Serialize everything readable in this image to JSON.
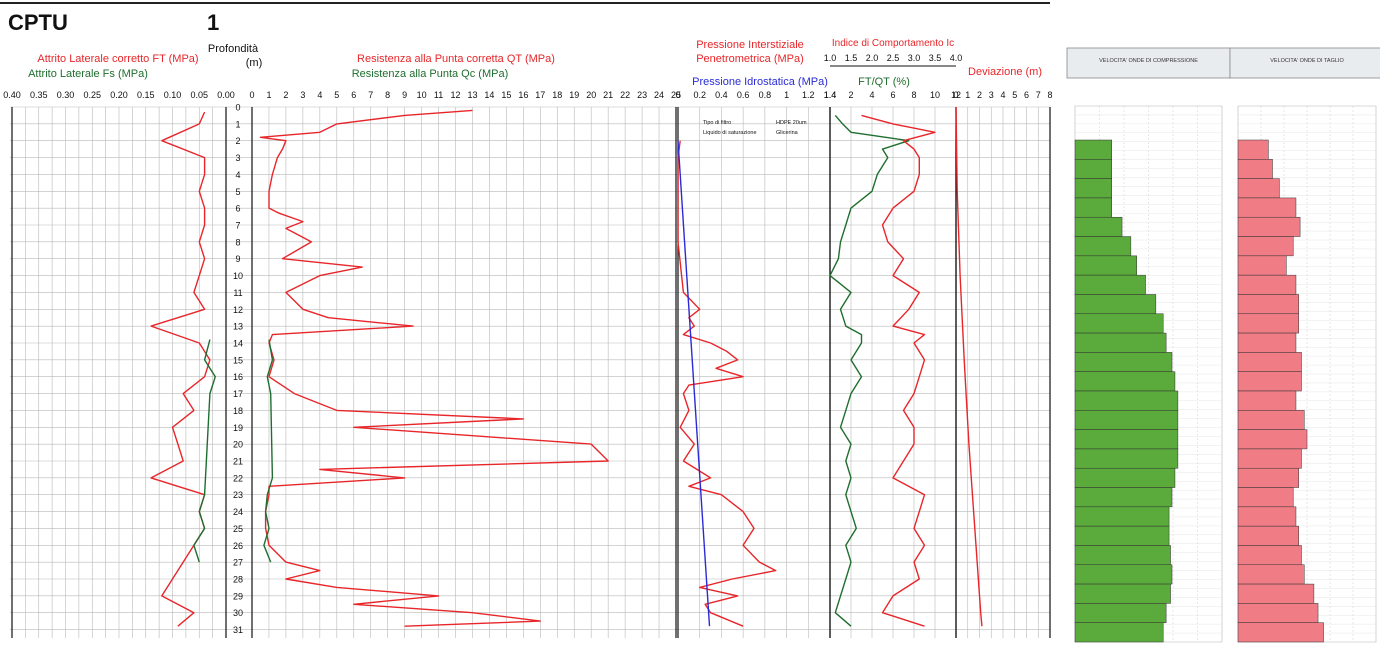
{
  "header": {
    "title": "CPTU",
    "number": "1"
  },
  "colors": {
    "red": "#e8262a",
    "green": "#1f6e2e",
    "blue": "#2b2bd6",
    "vp_fill": "#5aaa3c",
    "vs_fill": "#f07c86",
    "grid": "#b9b9b9"
  },
  "chart_data": [
    {
      "type": "line",
      "panel": "friction",
      "title_red": "Attrito Laterale corretto FT (MPa)",
      "title_green": "Attrito Laterale Fs (MPa)",
      "x_ticks": [
        "0.40",
        "0.35",
        "0.30",
        "0.25",
        "0.20",
        "0.15",
        "0.10",
        "0.05",
        "0.00"
      ],
      "xlim": [
        0.4,
        0.0
      ],
      "series": [
        {
          "name": "Attrito Laterale corretto FT (MPa)",
          "color": "red",
          "depth": [
            0.3,
            1,
            2,
            3,
            4,
            5,
            6,
            7,
            8,
            9,
            10,
            11,
            12,
            13,
            14,
            15,
            16,
            17,
            18,
            19,
            20,
            21,
            22,
            23,
            24,
            25,
            26,
            27,
            28,
            29,
            30,
            30.8
          ],
          "values": [
            0.04,
            0.05,
            0.12,
            0.04,
            0.04,
            0.05,
            0.04,
            0.04,
            0.05,
            0.04,
            0.05,
            0.06,
            0.04,
            0.14,
            0.05,
            0.03,
            0.04,
            0.08,
            0.06,
            0.1,
            0.09,
            0.08,
            0.14,
            0.04,
            0.05,
            0.04,
            0.06,
            0.08,
            0.1,
            0.12,
            0.06,
            0.09
          ]
        },
        {
          "name": "Attrito Laterale Fs (MPa)",
          "color": "green",
          "depth": [
            13.8,
            15,
            16,
            17,
            23,
            24,
            25,
            26,
            27
          ],
          "values": [
            0.03,
            0.04,
            0.02,
            0.03,
            0.04,
            0.05,
            0.04,
            0.06,
            0.05
          ]
        }
      ]
    },
    {
      "type": "axis",
      "panel": "depth",
      "label": "Profondità",
      "unit": "(m)",
      "ticks": [
        "0",
        "1",
        "2",
        "3",
        "4",
        "5",
        "6",
        "7",
        "8",
        "9",
        "10",
        "11",
        "12",
        "13",
        "14",
        "15",
        "16",
        "17",
        "18",
        "19",
        "20",
        "21",
        "22",
        "23",
        "24",
        "25",
        "26",
        "27",
        "28",
        "29",
        "30",
        "31"
      ],
      "ylim": [
        0,
        31.5
      ]
    },
    {
      "type": "line",
      "panel": "tip",
      "title_red": "Resistenza alla Punta corretta QT (MPa)",
      "title_green": "Resistenza alla Punta Qc (MPa)",
      "x_ticks": [
        "0",
        "1",
        "2",
        "3",
        "4",
        "5",
        "6",
        "7",
        "8",
        "9",
        "10",
        "11",
        "12",
        "13",
        "14",
        "15",
        "16",
        "17",
        "18",
        "19",
        "20",
        "21",
        "22",
        "23",
        "24",
        "25"
      ],
      "xlim": [
        0,
        25
      ],
      "series": [
        {
          "name": "Resistenza alla Punta corretta QT (MPa)",
          "color": "red",
          "depth": [
            0.2,
            0.5,
            1,
            1.5,
            1.8,
            2,
            2.5,
            3,
            4,
            5,
            6,
            6.3,
            6.8,
            7.2,
            8,
            9,
            9.5,
            10,
            11,
            12,
            12.5,
            13,
            13.5,
            14,
            15,
            16,
            17,
            18,
            18.5,
            19,
            19.5,
            20,
            21,
            21.5,
            22,
            22.5,
            23,
            24,
            25,
            26,
            27,
            27.5,
            28,
            28.5,
            29,
            29.5,
            30,
            30.5,
            30.8
          ],
          "values": [
            13,
            9,
            5,
            4,
            0.5,
            2,
            1.8,
            1.5,
            1.2,
            1.0,
            1.0,
            1.6,
            3.0,
            2.0,
            3.5,
            1.8,
            6.5,
            4,
            2,
            3,
            4.5,
            9.5,
            1.2,
            1.0,
            1.3,
            1.0,
            2.5,
            5,
            16,
            6,
            13,
            20,
            21,
            4,
            9,
            1.0,
            1.0,
            0.8,
            0.8,
            1.0,
            2,
            4,
            2,
            5,
            11,
            6,
            13,
            17,
            9
          ]
        },
        {
          "name": "Resistenza alla Punta Qc (MPa)",
          "color": "green",
          "depth": [
            13.8,
            15,
            16,
            17,
            22,
            23,
            24,
            25,
            26,
            27
          ],
          "values": [
            1.0,
            1.2,
            0.9,
            1.1,
            1.2,
            0.9,
            0.8,
            1.0,
            0.7,
            1.1
          ]
        }
      ]
    },
    {
      "type": "line",
      "panel": "pore-pressure",
      "title_red": "Pressione Interstiziale",
      "title_red2": "Penetrometrica (MPa)",
      "title_blue": "Pressione Idrostatica (MPa)",
      "x_ticks": [
        "0",
        "0.2",
        "0.4",
        "0.6",
        "0.8",
        "1",
        "1.2",
        "1.4"
      ],
      "xlim": [
        0,
        1.4
      ],
      "annotations": [
        "Tipo di filtro",
        "HDPE 20um",
        "Liquido di saturazione",
        "Glicerina"
      ],
      "series": [
        {
          "name": "Pressione Interstiziale Penetrometrica (MPa)",
          "color": "red",
          "depth": [
            2,
            3,
            5,
            8,
            11,
            12,
            12.5,
            13,
            13.5,
            14,
            14.5,
            15,
            15.5,
            16,
            16.5,
            17,
            18,
            19,
            20,
            21,
            22,
            22.5,
            23,
            24,
            25,
            26,
            27,
            27.5,
            28,
            28.5,
            29,
            29.5,
            30,
            30.8
          ],
          "values": [
            0.02,
            0.0,
            0.0,
            0.0,
            0.05,
            0.2,
            0.1,
            0.15,
            0.05,
            0.3,
            0.45,
            0.55,
            0.35,
            0.6,
            0.1,
            0.05,
            0.1,
            0.02,
            0.15,
            0.05,
            0.3,
            0.1,
            0.4,
            0.6,
            0.7,
            0.6,
            0.75,
            0.9,
            0.5,
            0.2,
            0.55,
            0.25,
            0.3,
            0.6
          ]
        },
        {
          "name": "Pressione Idrostatica (MPa)",
          "color": "blue",
          "depth": [
            2,
            30.8
          ],
          "values": [
            0.0,
            0.29
          ]
        }
      ]
    },
    {
      "type": "line",
      "panel": "ic",
      "title_red": "Indice di Comportamento Ic",
      "title_green": "FT/QT (%)",
      "top_ticks": [
        "1.0",
        "1.5",
        "2.0",
        "2.5",
        "3.0",
        "3.5",
        "4.0"
      ],
      "bottom_ticks": [
        "1.4",
        "2",
        "4",
        "6",
        "8",
        "10",
        "12"
      ],
      "xlim": [
        0,
        12
      ],
      "series": [
        {
          "name": "FT/QT (%)",
          "color": "green",
          "depth": [
            0.5,
            1,
            1.5,
            2,
            2.5,
            3,
            4,
            5,
            6,
            7,
            8,
            9,
            10,
            11,
            12,
            13,
            13.5,
            14,
            15,
            16,
            17,
            18,
            19,
            20,
            21,
            22,
            23,
            24,
            25,
            26,
            27,
            28,
            29,
            30,
            30.8
          ],
          "values": [
            0.5,
            1.2,
            2,
            7.5,
            5,
            5.5,
            4.5,
            4,
            2,
            1.5,
            1,
            0.8,
            0,
            2,
            1,
            1.5,
            3,
            3,
            2,
            3,
            2,
            1.5,
            1,
            2,
            1.5,
            2,
            1.5,
            2,
            2.5,
            1.5,
            2,
            1.5,
            1.0,
            0.5,
            2
          ]
        },
        {
          "name": "Indice di Comportamento Ic",
          "color": "red",
          "depth": [
            0.5,
            1,
            1.5,
            2,
            2.5,
            3,
            4,
            5,
            6,
            7,
            8,
            9,
            10,
            11,
            12,
            13,
            13.5,
            14,
            15,
            16,
            17,
            18,
            19,
            20,
            21,
            22,
            23,
            24,
            25,
            26,
            27,
            28,
            29,
            30,
            30.8
          ],
          "values": [
            3,
            6,
            10,
            7,
            8,
            8.5,
            8.5,
            8,
            6,
            5,
            5.5,
            7,
            6,
            8.5,
            7.5,
            6,
            9,
            8,
            9,
            8.5,
            8,
            7,
            8,
            8,
            7,
            6,
            9,
            8.5,
            8,
            9,
            8,
            8.5,
            6,
            5,
            9
          ]
        }
      ]
    },
    {
      "type": "line",
      "panel": "deviation",
      "title": "Deviazione (m)",
      "x_ticks": [
        "0",
        "1",
        "2",
        "3",
        "4",
        "5",
        "6",
        "7",
        "8"
      ],
      "xlim": [
        0,
        8
      ],
      "series": [
        {
          "name": "Deviazione (m)",
          "color": "red",
          "depth": [
            0,
            5,
            10,
            15,
            20,
            25,
            30,
            30.8
          ],
          "values": [
            0,
            0.1,
            0.35,
            0.7,
            1.1,
            1.6,
            2.1,
            2.2
          ]
        }
      ]
    },
    {
      "type": "bar",
      "panel": "vp",
      "title": "VELOCITA' ONDE DI COMPRESSIONE",
      "values": [
        0.25,
        0.25,
        0.25,
        0.25,
        0.32,
        0.38,
        0.42,
        0.48,
        0.55,
        0.6,
        0.62,
        0.66,
        0.68,
        0.7,
        0.7,
        0.7,
        0.7,
        0.68,
        0.66,
        0.64,
        0.64,
        0.65,
        0.66,
        0.65,
        0.62,
        0.6
      ]
    },
    {
      "type": "bar",
      "panel": "vs",
      "title": "VELOCITA' ONDE DI TAGLIO",
      "values": [
        0.22,
        0.25,
        0.3,
        0.42,
        0.45,
        0.4,
        0.35,
        0.42,
        0.44,
        0.44,
        0.42,
        0.46,
        0.46,
        0.42,
        0.48,
        0.5,
        0.46,
        0.44,
        0.4,
        0.42,
        0.44,
        0.46,
        0.48,
        0.55,
        0.58,
        0.62
      ]
    }
  ]
}
